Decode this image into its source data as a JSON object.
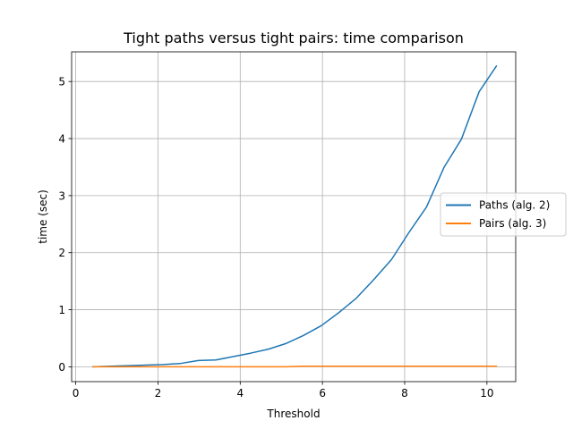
{
  "chart_data": {
    "type": "line",
    "title": "Tight paths versus tight pairs: time comparison",
    "xlabel": "Threshold",
    "ylabel": "time (sec)",
    "xlim": [
      -0.1,
      10.7
    ],
    "ylim": [
      -0.26,
      5.52
    ],
    "xticks": [
      0,
      2,
      4,
      6,
      8,
      10
    ],
    "xtick_labels": [
      "0",
      "2",
      "4",
      "6",
      "8",
      "10"
    ],
    "yticks": [
      0,
      1,
      2,
      3,
      4,
      5
    ],
    "ytick_labels": [
      "0",
      "1",
      "2",
      "3",
      "4",
      "5"
    ],
    "grid": true,
    "legend_position": "center-right",
    "series": [
      {
        "name": "Paths (alg. 2)",
        "color": "#1f77b4",
        "x": [
          0.42,
          0.85,
          1.28,
          1.7,
          2.13,
          2.56,
          2.98,
          3.41,
          3.84,
          4.26,
          4.69,
          5.12,
          5.54,
          5.97,
          6.4,
          6.82,
          7.25,
          7.68,
          8.1,
          8.53,
          8.96,
          9.38,
          9.81,
          10.23
        ],
        "y": [
          0.0,
          0.01,
          0.02,
          0.03,
          0.04,
          0.06,
          0.11,
          0.12,
          0.18,
          0.24,
          0.31,
          0.41,
          0.55,
          0.72,
          0.95,
          1.2,
          1.53,
          1.88,
          2.35,
          2.8,
          3.5,
          3.99,
          4.82,
          5.27
        ]
      },
      {
        "name": "Pairs (alg. 3)",
        "color": "#ff7f0e",
        "x": [
          0.42,
          0.85,
          1.28,
          1.7,
          2.13,
          2.56,
          2.98,
          3.41,
          3.84,
          4.26,
          4.69,
          5.12,
          5.54,
          5.97,
          6.4,
          6.82,
          7.25,
          7.68,
          8.1,
          8.53,
          8.96,
          9.38,
          9.81,
          10.23
        ],
        "y": [
          0.0,
          0.0,
          0.0,
          0.0,
          0.0,
          0.0,
          0.0,
          0.0,
          0.0,
          0.0,
          0.0,
          0.0,
          0.01,
          0.01,
          0.01,
          0.01,
          0.01,
          0.01,
          0.01,
          0.01,
          0.01,
          0.01,
          0.01,
          0.01
        ]
      }
    ]
  }
}
